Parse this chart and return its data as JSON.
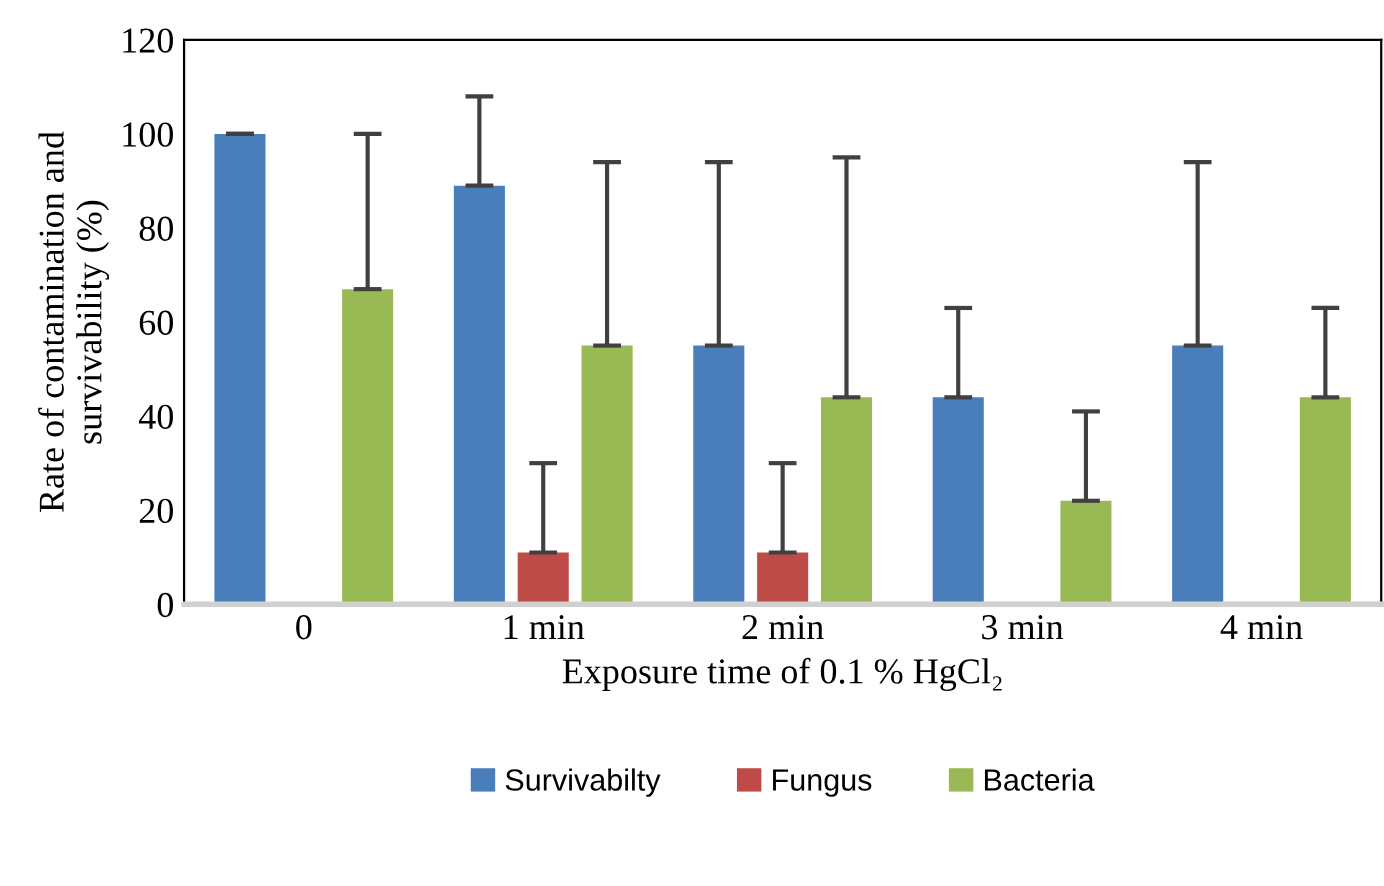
{
  "chart_data": {
    "type": "bar",
    "xlabel": "Exposure time of 0.1 % HgCl₂",
    "ylabel": "Rate of contamination and\nsurvivability (%)",
    "categories": [
      "0",
      "1 min",
      "2 min",
      "3 min",
      "4 min"
    ],
    "series": [
      {
        "name": "Survivabilty",
        "color": "#4a7ebb",
        "values": [
          100,
          89,
          55,
          44,
          55
        ],
        "errors": [
          [
            100,
            100
          ],
          [
            89,
            108
          ],
          [
            55,
            94
          ],
          [
            44,
            63
          ],
          [
            55,
            94
          ]
        ]
      },
      {
        "name": "Fungus",
        "color": "#be4b48",
        "values": [
          0,
          11,
          11,
          0,
          0
        ],
        "errors": [
          null,
          [
            11,
            30
          ],
          [
            11,
            30
          ],
          null,
          null
        ]
      },
      {
        "name": "Bacteria",
        "color": "#98b954",
        "values": [
          67,
          55,
          44,
          22,
          44
        ],
        "errors": [
          [
            67,
            100
          ],
          [
            55,
            94
          ],
          [
            44,
            95
          ],
          [
            22,
            41
          ],
          [
            44,
            63
          ]
        ]
      }
    ],
    "ylim": [
      0,
      120
    ],
    "yticks": [
      0,
      20,
      40,
      60,
      80,
      100,
      120
    ],
    "grid": false,
    "legend": "bottom"
  }
}
